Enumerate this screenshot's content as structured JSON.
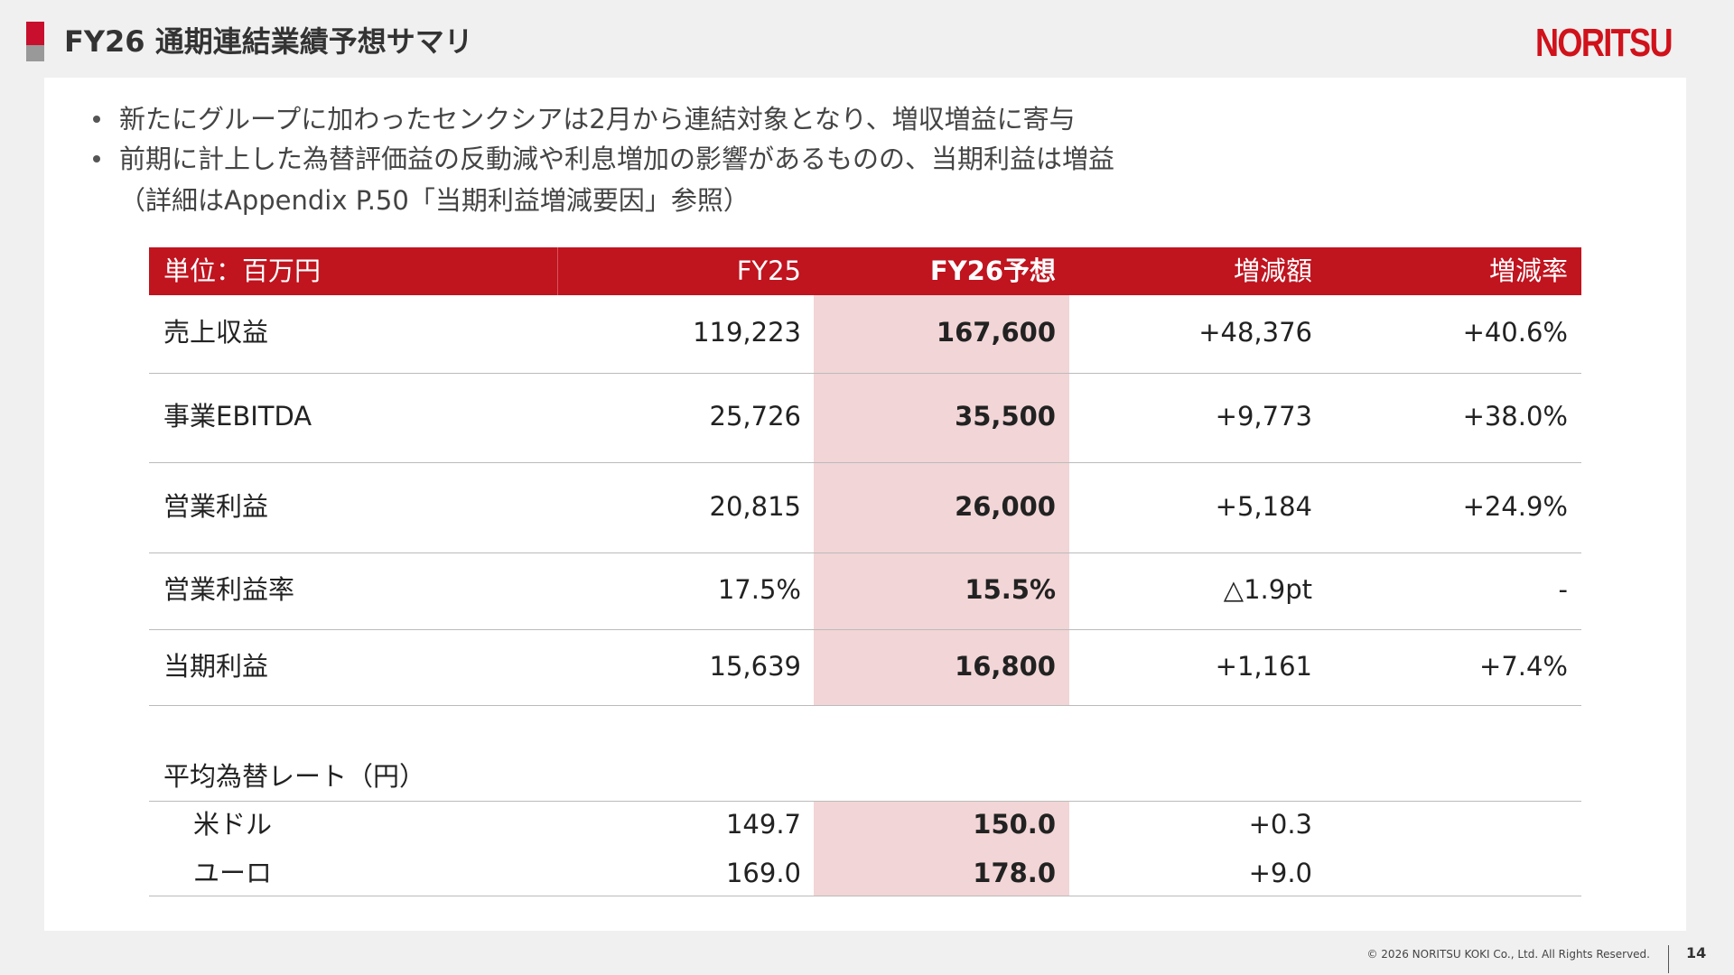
{
  "header": {
    "title": "FY26 通期連結業績予想サマリ",
    "logo": "NORITSU"
  },
  "bullets": [
    "新たにグループに加わったセンクシアは2月から連結対象となり、増収増益に寄与",
    "前期に計上した為替評価益の反動減や利息増加の影響があるものの、当期利益は増益"
  ],
  "note": "（詳細はAppendix P.50「当期利益増減要因」参照）",
  "table": {
    "columns": [
      "単位：百万円",
      "FY25",
      "FY26予想",
      "増減額",
      "増減率"
    ],
    "rows": [
      [
        "売上収益",
        "119,223",
        "167,600",
        "+48,376",
        "+40.6%"
      ],
      [
        "事業EBITDA",
        "25,726",
        "35,500",
        "+9,773",
        "+38.0%"
      ],
      [
        "営業利益",
        "20,815",
        "26,000",
        "+5,184",
        "+24.9%"
      ],
      [
        "営業利益率",
        "17.5%",
        "15.5%",
        "△1.9pt",
        "-"
      ],
      [
        "当期利益",
        "15,639",
        "16,800",
        "+1,161",
        "+7.4%"
      ]
    ]
  },
  "fx": {
    "title": "平均為替レート（円）",
    "rows": [
      [
        "米ドル",
        "149.7",
        "150.0",
        "+0.3"
      ],
      [
        "ユーロ",
        "169.0",
        "178.0",
        "+9.0"
      ]
    ]
  },
  "footer": {
    "copyright": "© 2026 NORITSU KOKI Co., Ltd. All Rights Reserved.",
    "page": "14"
  }
}
